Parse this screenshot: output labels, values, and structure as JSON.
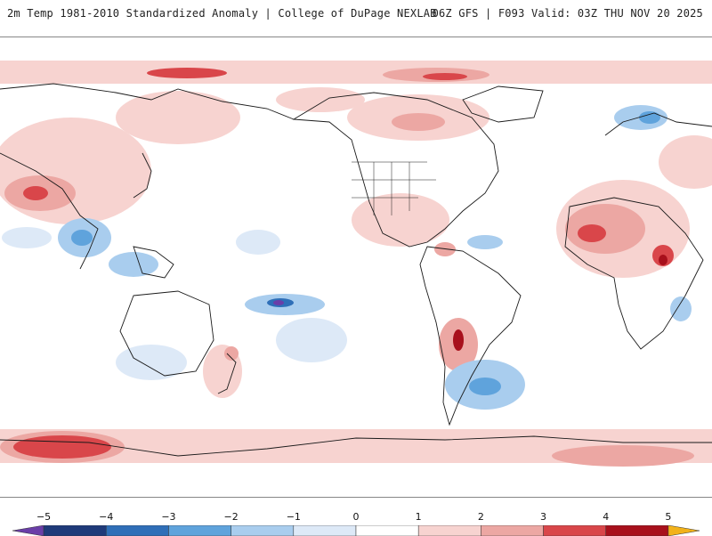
{
  "header": {
    "title": "2m Temp 1981-2010 Standardized Anomaly | College of DuPage NEXLAB",
    "run_info": "06Z GFS | F093 Valid: 03Z THU NOV 20 2025"
  },
  "colorbar": {
    "min": -5.5,
    "max": 5.5,
    "ticks": [
      "-5",
      "-4",
      "-3",
      "-2",
      "-1",
      "0",
      "1",
      "2",
      "3",
      "4",
      "5"
    ],
    "segments": [
      {
        "from": -5.5,
        "to": -5,
        "color": "#6a3ea8"
      },
      {
        "from": -5,
        "to": -4,
        "color": "#1f3a7a"
      },
      {
        "from": -4,
        "to": -3,
        "color": "#2f6fb8"
      },
      {
        "from": -3,
        "to": -2,
        "color": "#5fa3dc"
      },
      {
        "from": -2,
        "to": -1,
        "color": "#a9cdee"
      },
      {
        "from": -1,
        "to": 0,
        "color": "#dde9f7"
      },
      {
        "from": 0,
        "to": 1,
        "color": "#ffffff"
      },
      {
        "from": 1,
        "to": 2,
        "color": "#f7d3d0"
      },
      {
        "from": 2,
        "to": 3,
        "color": "#eca7a3"
      },
      {
        "from": 3,
        "to": 4,
        "color": "#d9464a"
      },
      {
        "from": 4,
        "to": 5,
        "color": "#a8101c"
      },
      {
        "from": 5,
        "to": 5.5,
        "color": "#f2b21a"
      }
    ]
  },
  "map": {
    "projection": "equirectangular",
    "center_longitude": "-90",
    "anomaly_colors": {
      "warm1": "#f7d3d0",
      "warm2": "#eca7a3",
      "warm3": "#d9464a",
      "warm4": "#a8101c",
      "cold1": "#dde9f7",
      "cold2": "#a9cdee",
      "cold3": "#5fa3dc",
      "cold4": "#2f6fb8",
      "cold5": "#6a3ea8"
    }
  }
}
